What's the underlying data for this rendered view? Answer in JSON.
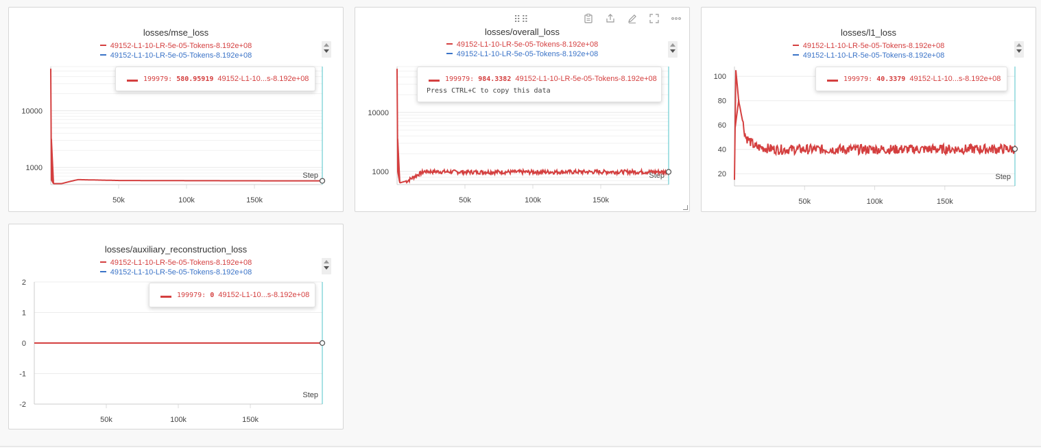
{
  "panels": [
    {
      "id": "mse",
      "title": "losses/mse_loss",
      "legend": [
        {
          "label": "49152-L1-10-LR-5e-05-Tokens-8.192e+08",
          "color": "#d43f3f"
        },
        {
          "label": "49152-L1-10-LR-5e-05-Tokens-8.192e+08",
          "color": "#3a73c7"
        }
      ],
      "tooltip": {
        "step": "199979:",
        "value": "580.95919",
        "label": "49152-L1-10...s-8.192e+08",
        "hint": ""
      },
      "step_label": "Step"
    },
    {
      "id": "overall",
      "title": "losses/overall_loss",
      "legend": [
        {
          "label": "49152-L1-10-LR-5e-05-Tokens-8.192e+08",
          "color": "#d43f3f"
        },
        {
          "label": "49152-L1-10-LR-5e-05-Tokens-8.192e+08",
          "color": "#3a73c7"
        }
      ],
      "tooltip": {
        "step": "199979:",
        "value": "984.3382",
        "label": "49152-L1-10-LR-5e-05-Tokens-8.192e+08",
        "hint": "Press CTRL+C to copy this data"
      },
      "step_label": "Step",
      "toolbar": [
        "clipboard-icon",
        "share-icon",
        "edit-icon",
        "fullscreen-icon",
        "more-icon"
      ]
    },
    {
      "id": "l1",
      "title": "losses/l1_loss",
      "legend": [
        {
          "label": "49152-L1-10-LR-5e-05-Tokens-8.192e+08",
          "color": "#d43f3f"
        },
        {
          "label": "49152-L1-10-LR-5e-05-Tokens-8.192e+08",
          "color": "#3a73c7"
        }
      ],
      "tooltip": {
        "step": "199979:",
        "value": "40.3379",
        "label": "49152-L1-10...s-8.192e+08",
        "hint": ""
      },
      "step_label": "Step"
    },
    {
      "id": "aux",
      "title": "losses/auxiliary_reconstruction_loss",
      "legend": [
        {
          "label": "49152-L1-10-LR-5e-05-Tokens-8.192e+08",
          "color": "#d43f3f"
        },
        {
          "label": "49152-L1-10-LR-5e-05-Tokens-8.192e+08",
          "color": "#3a73c7"
        }
      ],
      "tooltip": {
        "step": "199979:",
        "value": "0",
        "label": "49152-L1-10...s-8.192e+08",
        "hint": ""
      },
      "step_label": "Step"
    }
  ],
  "chart_data": [
    {
      "type": "line",
      "title": "losses/mse_loss",
      "xlabel": "Step",
      "ylabel": "",
      "yscale": "log",
      "xlim": [
        0,
        199979
      ],
      "ylim": [
        500,
        60000
      ],
      "x_ticks": [
        "50k",
        "100k",
        "150k"
      ],
      "y_ticks": [
        "1000",
        "10000"
      ],
      "series": [
        {
          "name": "49152-L1-10-LR-5e-05-Tokens-8.192e+08",
          "color": "#d43f3f",
          "x": [
            0,
            500,
            2000,
            8000,
            20000,
            50000,
            100000,
            150000,
            199979
          ],
          "y": [
            55000,
            600,
            520,
            520,
            610,
            590,
            585,
            582,
            580.95919
          ]
        }
      ]
    },
    {
      "type": "line",
      "title": "losses/overall_loss",
      "xlabel": "Step",
      "ylabel": "",
      "yscale": "log",
      "xlim": [
        0,
        199979
      ],
      "ylim": [
        600,
        60000
      ],
      "x_ticks": [
        "50k",
        "100k",
        "150k"
      ],
      "y_ticks": [
        "1000",
        "10000"
      ],
      "series": [
        {
          "name": "49152-L1-10-LR-5e-05-Tokens-8.192e+08",
          "color": "#d43f3f",
          "x": [
            0,
            500,
            2000,
            8000,
            20000,
            50000,
            100000,
            150000,
            199979
          ],
          "y": [
            55000,
            1000,
            640,
            700,
            1000,
            980,
            980,
            985,
            984.3382
          ],
          "noise": 0.08
        }
      ]
    },
    {
      "type": "line",
      "title": "losses/l1_loss",
      "xlabel": "Step",
      "ylabel": "",
      "yscale": "linear",
      "xlim": [
        0,
        199979
      ],
      "ylim": [
        10,
        108
      ],
      "x_ticks": [
        "50k",
        "100k",
        "150k"
      ],
      "y_ticks": [
        "20",
        "40",
        "60",
        "80",
        "100"
      ],
      "series": [
        {
          "name": "49152-L1-10-LR-5e-05-Tokens-8.192e+08",
          "color": "#d43f3f",
          "x": [
            0,
            1000,
            3000,
            8000,
            15000,
            30000,
            100000,
            199979
          ],
          "y": [
            15,
            105,
            80,
            50,
            42,
            40,
            40,
            40.3379
          ],
          "noise": 4
        }
      ]
    },
    {
      "type": "line",
      "title": "losses/auxiliary_reconstruction_loss",
      "xlabel": "Step",
      "ylabel": "",
      "yscale": "linear",
      "xlim": [
        0,
        199979
      ],
      "ylim": [
        -2,
        2
      ],
      "x_ticks": [
        "50k",
        "100k",
        "150k"
      ],
      "y_ticks": [
        "2",
        "1",
        "0",
        "-1",
        "-2"
      ],
      "series": [
        {
          "name": "49152-L1-10-LR-5e-05-Tokens-8.192e+08",
          "color": "#d43f3f",
          "x": [
            0,
            199979
          ],
          "y": [
            0,
            0
          ]
        }
      ]
    }
  ]
}
